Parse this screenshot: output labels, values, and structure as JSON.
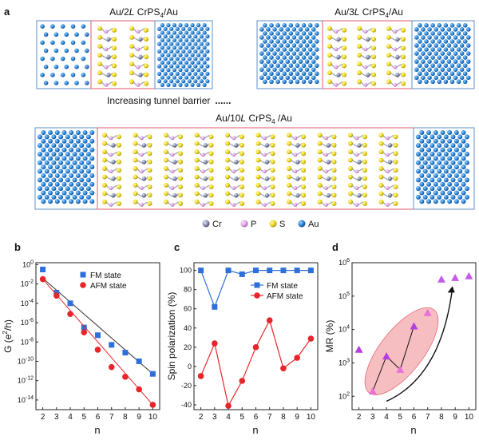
{
  "colors": {
    "fm": "#2e6fd9",
    "afm": "#e8252b",
    "mr": "#b33ee0",
    "cr": "#8a92b0",
    "p": "#e4a7e6",
    "s": "#f2dc1e",
    "au": "#2a86d6",
    "lead_border": "#5f8fc9",
    "barrier_border": "#e05a6a",
    "ellipse": "#f4a3a8"
  },
  "panel_a": {
    "label": "a",
    "structures": [
      {
        "prefix": "Au/2",
        "L": "L",
        "middle": " CrPS",
        "sub": "4",
        "suffix": "/Au"
      },
      {
        "prefix": "Au/3",
        "L": "L",
        "middle": " CrPS",
        "sub": "4",
        "suffix": "/Au"
      },
      {
        "prefix": "Au/10",
        "L": "L",
        "middle": " CrPS",
        "sub": "4",
        "suffix": " /Au"
      }
    ],
    "increasing_text": "Increasing tunnel barrier",
    "dots": "......",
    "legend": [
      {
        "label": "Cr",
        "color_key": "cr"
      },
      {
        "label": "P",
        "color_key": "p"
      },
      {
        "label": "S",
        "color_key": "s"
      },
      {
        "label": "Au",
        "color_key": "au"
      }
    ]
  },
  "chart_data": [
    {
      "panel": "b",
      "type": "scatter",
      "xlabel": "n",
      "ylabel_main": "G (e",
      "ylabel_sup": "2",
      "ylabel_tail": "/h)",
      "yscale": "log",
      "ylim_exp": [
        -15,
        0.2
      ],
      "xlim": [
        1.5,
        10.5
      ],
      "xticks": [
        2,
        3,
        4,
        5,
        6,
        7,
        8,
        9,
        10
      ],
      "yticks": [
        {
          "base": "10",
          "exp": "0",
          "value": 0
        },
        {
          "base": "10",
          "exp": "-2",
          "value": -2
        },
        {
          "base": "10",
          "exp": "-4",
          "value": -4
        },
        {
          "base": "10",
          "exp": "-6",
          "value": -6
        },
        {
          "base": "10",
          "exp": "-8",
          "value": -8
        },
        {
          "base": "10",
          "exp": "-10",
          "value": -10
        },
        {
          "base": "10",
          "exp": "-12",
          "value": -12
        },
        {
          "base": "10",
          "exp": "-14",
          "value": -14
        }
      ],
      "legend_position": "top-right",
      "series": [
        {
          "name": "FM state",
          "marker": "square",
          "color_key": "fm",
          "x": [
            2,
            3,
            4,
            5,
            6,
            7,
            8,
            9,
            10
          ],
          "log10_y": [
            -0.5,
            -2.9,
            -4.0,
            -6.5,
            -7.3,
            -8.3,
            -9.1,
            -10.0,
            -11.3
          ],
          "fit_log10": [
            -1.4,
            -11.3
          ]
        },
        {
          "name": "AFM state",
          "marker": "circle",
          "color_key": "afm",
          "x": [
            2,
            3,
            4,
            5,
            6,
            7,
            8,
            9,
            10
          ],
          "log10_y": [
            -1.5,
            -3.2,
            -5.1,
            -7.0,
            -8.8,
            -10.6,
            -11.6,
            -12.9,
            -14.5
          ],
          "fit_log10": [
            -1.5,
            -14.5
          ]
        }
      ]
    },
    {
      "panel": "c",
      "type": "line",
      "xlabel": "n",
      "ylabel": "Spin polarization (%)",
      "ylim": [
        -45,
        108
      ],
      "xlim": [
        1.5,
        10.5
      ],
      "xticks": [
        2,
        3,
        4,
        5,
        6,
        7,
        8,
        9,
        10
      ],
      "yticks": [
        -40,
        -20,
        0,
        20,
        40,
        60,
        80,
        100
      ],
      "legend_position": "right",
      "series": [
        {
          "name": "FM state",
          "marker": "square",
          "color_key": "fm",
          "x": [
            2,
            3,
            4,
            5,
            6,
            7,
            8,
            9,
            10
          ],
          "y": [
            100,
            62,
            100,
            96,
            100,
            100,
            100,
            100,
            100
          ]
        },
        {
          "name": "AFM state",
          "marker": "circle",
          "color_key": "afm",
          "x": [
            2,
            3,
            4,
            5,
            6,
            7,
            8,
            9,
            10
          ],
          "y": [
            -10,
            24,
            -41,
            -15,
            20,
            48,
            -2,
            9,
            29
          ]
        }
      ]
    },
    {
      "panel": "d",
      "type": "scatter",
      "xlabel": "n",
      "ylabel": "MR (%)",
      "yscale": "log",
      "ylim_exp": [
        1.6,
        6
      ],
      "xlim": [
        1.5,
        10.5
      ],
      "xticks": [
        2,
        3,
        4,
        5,
        6,
        7,
        8,
        9,
        10
      ],
      "yticks": [
        {
          "base": "10",
          "exp": "2",
          "value": 2
        },
        {
          "base": "10",
          "exp": "3",
          "value": 3
        },
        {
          "base": "10",
          "exp": "4",
          "value": 4
        },
        {
          "base": "10",
          "exp": "5",
          "value": 5
        },
        {
          "base": "10",
          "exp": "6",
          "value": 6
        }
      ],
      "series": [
        {
          "name": "MR",
          "marker": "triangle",
          "color_key": "mr",
          "x": [
            2,
            3,
            4,
            5,
            6,
            7,
            8,
            9,
            10
          ],
          "log10_y": [
            3.4,
            2.15,
            3.2,
            2.8,
            4.1,
            4.5,
            5.5,
            5.55,
            5.6
          ]
        }
      ],
      "connected": [
        3,
        4,
        5,
        6
      ],
      "connector_series": [
        {
          "x": [
            3,
            4,
            5,
            6
          ],
          "log10_y": [
            2.15,
            3.2,
            2.8,
            4.1
          ]
        }
      ]
    }
  ]
}
